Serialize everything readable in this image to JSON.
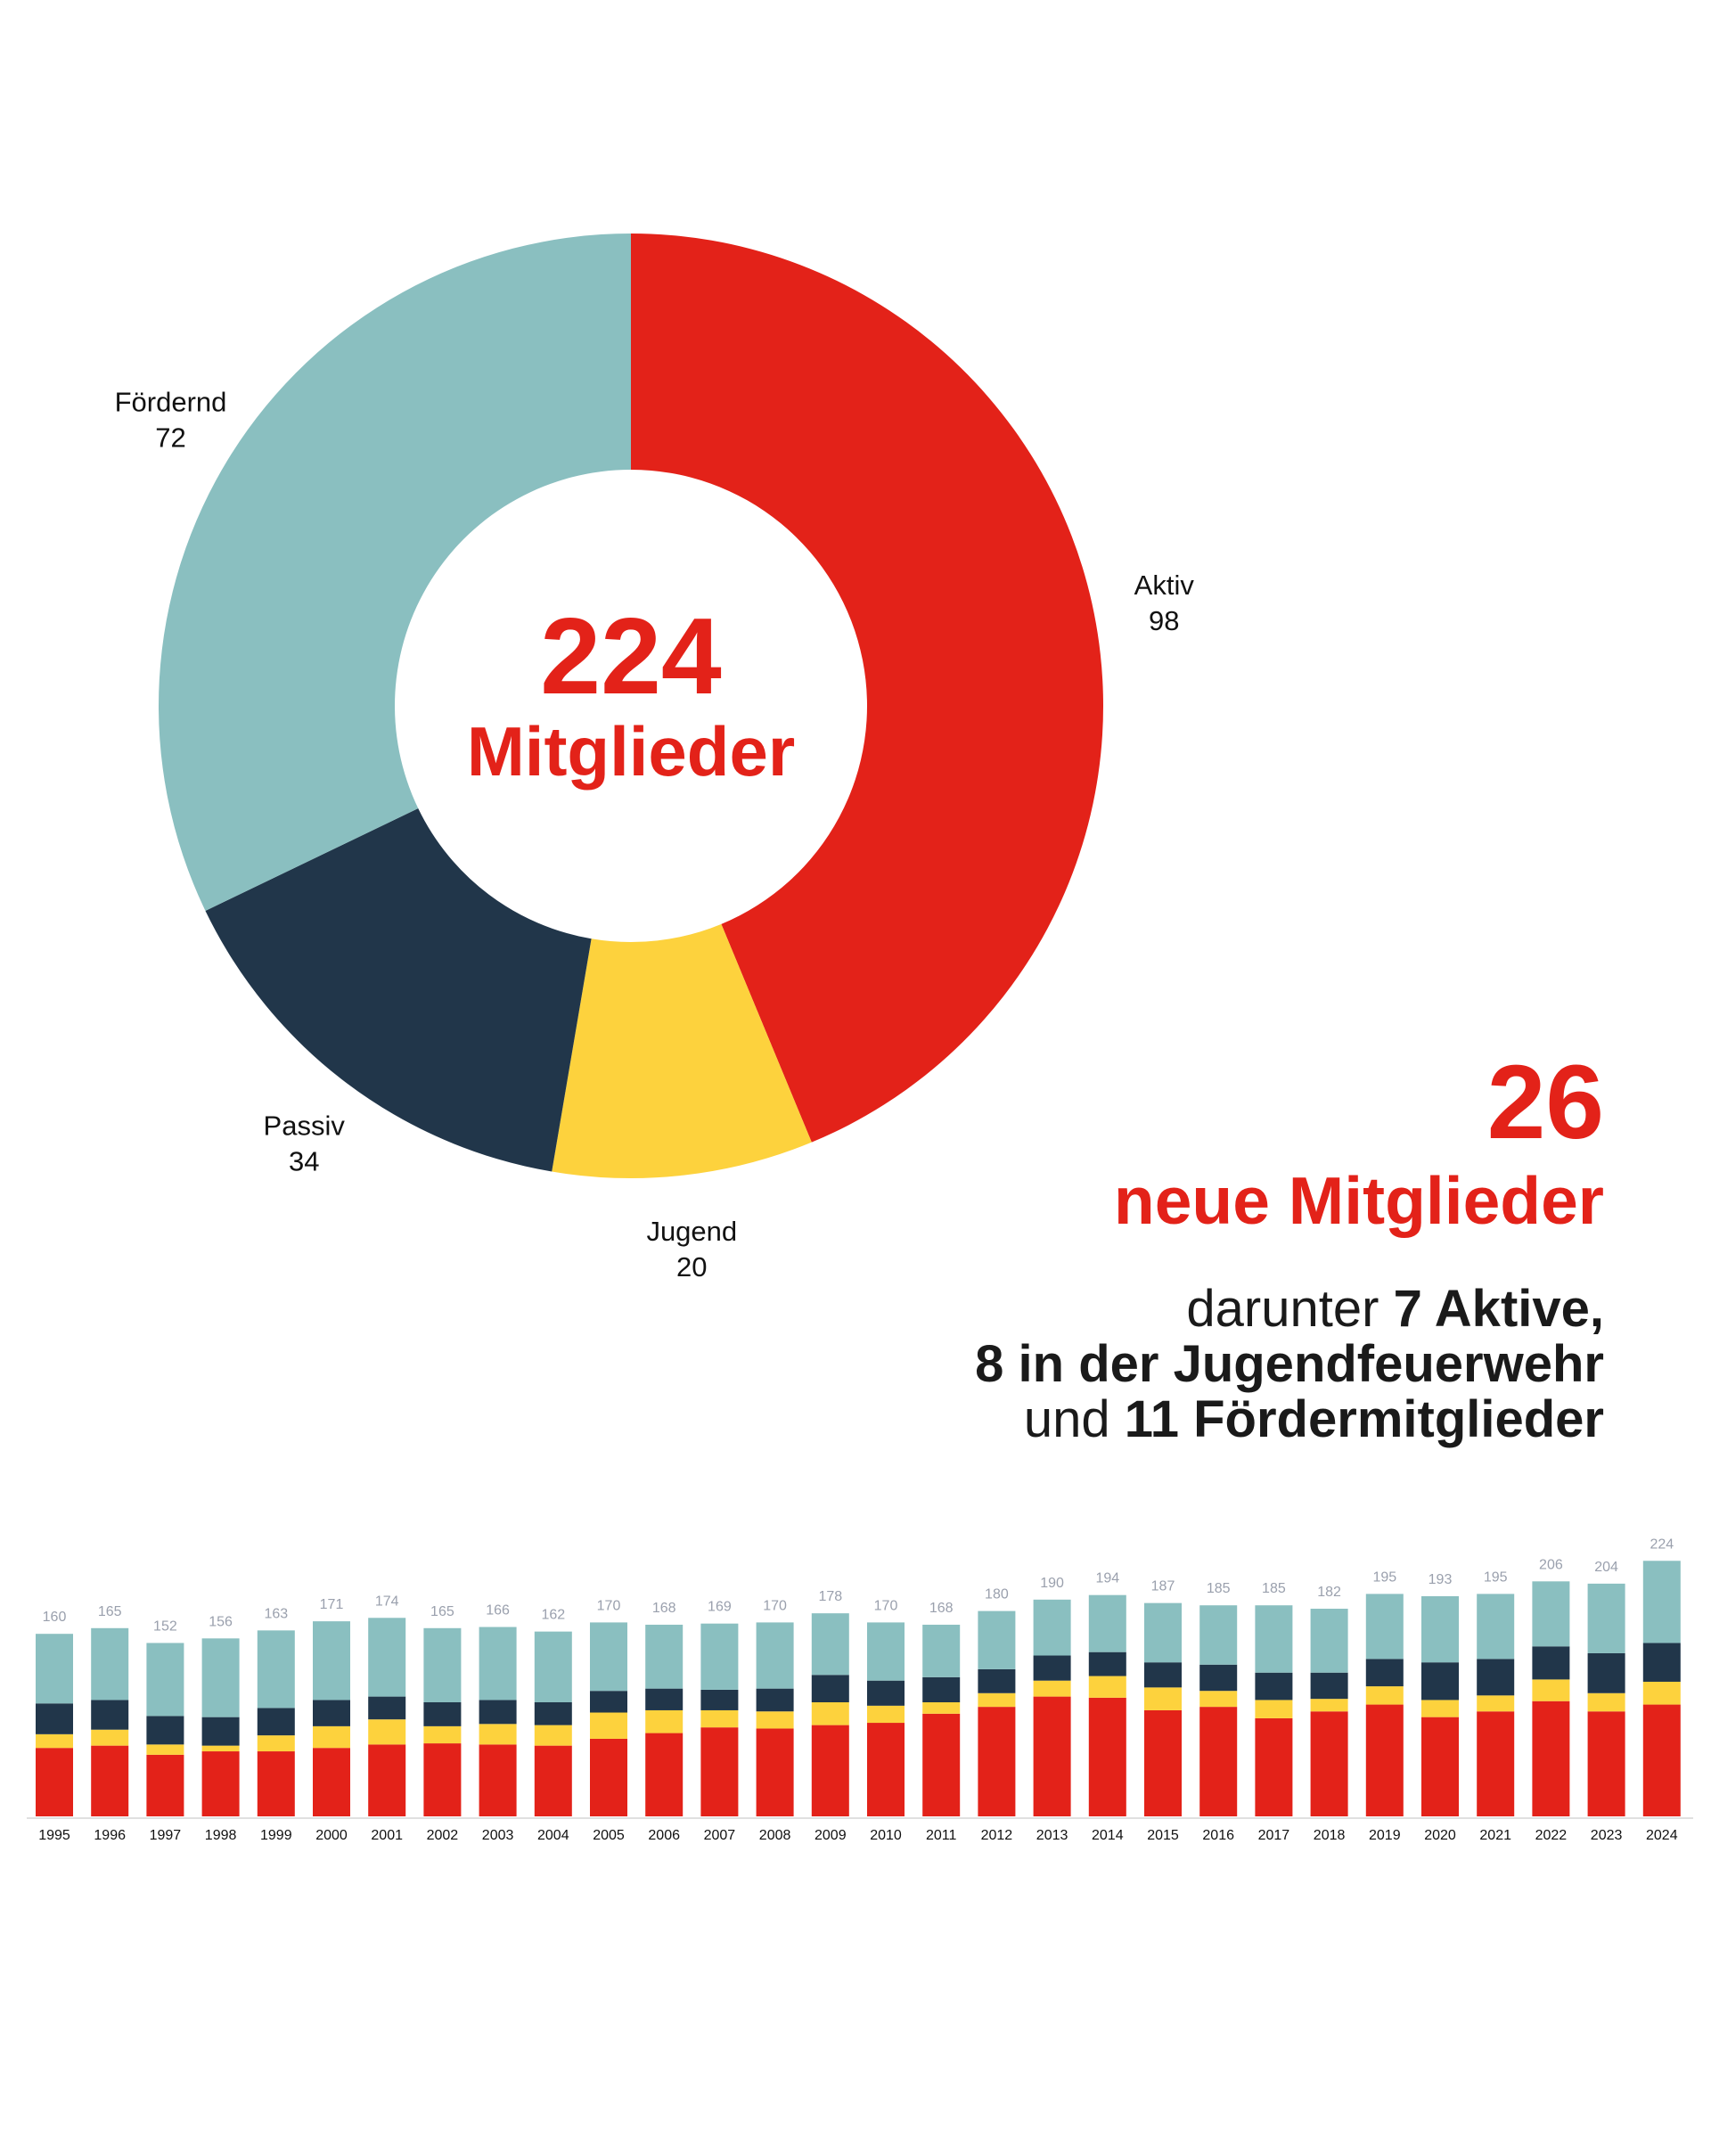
{
  "colors": {
    "aktiv": "#E32219",
    "jugend": "#FDD23D",
    "passiv": "#21364A",
    "foerdernd": "#8ABFC0",
    "text_red": "#E32219",
    "text_dark": "#111111",
    "total_label": "#9AA0AD"
  },
  "donut": {
    "total_value": "224",
    "total_label": "Mitglieder"
  },
  "new_members": {
    "count": "26",
    "label": "neue Mitglieder",
    "line1_prefix": "darunter ",
    "line1_bold": "7 Aktive,",
    "line2_bold": "8 in der Jugendfeuerwehr",
    "line3_prefix": "und ",
    "line3_bold": "11 Fördermitglieder"
  },
  "chart_data": [
    {
      "type": "pie",
      "variant": "donut",
      "categories": [
        "Aktiv",
        "Jugend",
        "Passiv",
        "Fördernd"
      ],
      "values": [
        98,
        20,
        34,
        72
      ],
      "center_text": [
        "224",
        "Mitglieder"
      ],
      "start": "top, clockwise",
      "labels": "outside segments, name above value"
    },
    {
      "type": "bar",
      "stacked": true,
      "categories": [
        "1995",
        "1996",
        "1997",
        "1998",
        "1999",
        "2000",
        "2001",
        "2002",
        "2003",
        "2004",
        "2005",
        "2006",
        "2007",
        "2008",
        "2009",
        "2010",
        "2011",
        "2012",
        "2013",
        "2014",
        "2015",
        "2016",
        "2017",
        "2018",
        "2019",
        "2020",
        "2021",
        "2022",
        "2023",
        "2024"
      ],
      "totals": [
        160,
        165,
        152,
        156,
        163,
        171,
        174,
        165,
        166,
        162,
        170,
        168,
        169,
        170,
        178,
        170,
        168,
        180,
        190,
        194,
        187,
        185,
        185,
        182,
        195,
        193,
        195,
        206,
        204,
        224
      ],
      "series": [
        {
          "key": "aktiv",
          "values": [
            60,
            62,
            54,
            57,
            57,
            60,
            63,
            64,
            63,
            62,
            68,
            73,
            78,
            77,
            80,
            82,
            90,
            96,
            105,
            104,
            93,
            96,
            86,
            92,
            98,
            87,
            92,
            101,
            92,
            98
          ]
        },
        {
          "key": "jugend",
          "values": [
            12,
            14,
            9,
            5,
            14,
            19,
            22,
            15,
            18,
            18,
            23,
            20,
            15,
            15,
            20,
            15,
            10,
            12,
            14,
            19,
            20,
            14,
            16,
            11,
            16,
            15,
            14,
            19,
            16,
            20
          ]
        },
        {
          "key": "passiv",
          "values": [
            27,
            26,
            25,
            25,
            24,
            23,
            20,
            21,
            21,
            20,
            19,
            19,
            18,
            20,
            24,
            22,
            22,
            21,
            22,
            21,
            22,
            23,
            24,
            23,
            24,
            33,
            32,
            29,
            35,
            34
          ]
        },
        {
          "key": "foerdernd",
          "values": [
            61,
            63,
            64,
            69,
            68,
            69,
            69,
            65,
            64,
            62,
            60,
            56,
            58,
            58,
            54,
            51,
            46,
            51,
            49,
            50,
            52,
            52,
            59,
            56,
            57,
            58,
            57,
            57,
            61,
            72
          ]
        }
      ],
      "xlabel": "",
      "ylabel": "",
      "grid": false,
      "legend": "none"
    }
  ]
}
